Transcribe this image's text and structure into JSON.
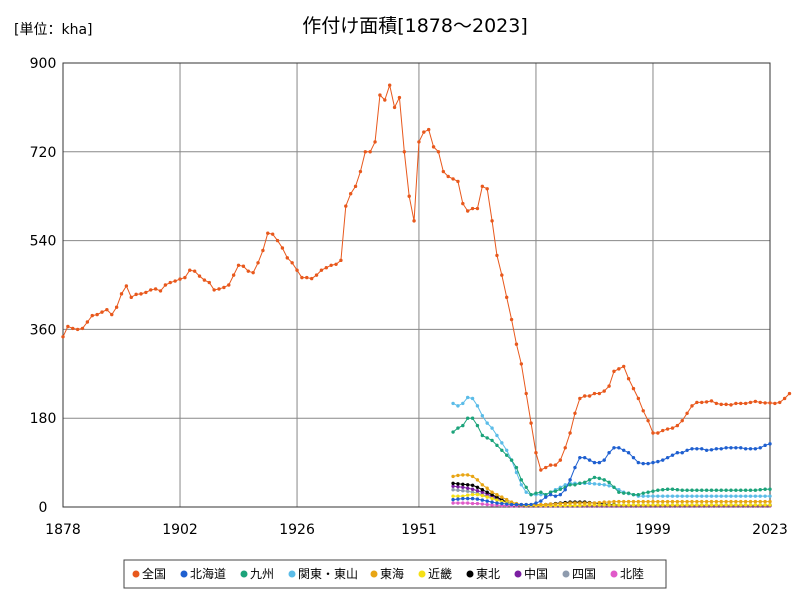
{
  "chart_data": {
    "type": "line",
    "title": "作付け面積[1878～2023]",
    "unit_label": "[単位：kha]",
    "xlabel": "",
    "ylabel": "",
    "xlim": [
      1878,
      2023
    ],
    "ylim": [
      0,
      900
    ],
    "x_ticks": [
      "1878",
      "1902",
      "1926",
      "1951",
      "1975",
      "1999",
      "2023"
    ],
    "y_ticks": [
      "0",
      "180",
      "360",
      "540",
      "720",
      "900"
    ],
    "grid": true,
    "legend_position": "bottom",
    "series": [
      {
        "name": "全国",
        "color": "#E8581C",
        "x0": 1878,
        "values": [
          345,
          366,
          362,
          360,
          362,
          375,
          388,
          390,
          395,
          400,
          390,
          405,
          432,
          448,
          425,
          431,
          432,
          435,
          440,
          442,
          438,
          450,
          455,
          458,
          462,
          465,
          480,
          478,
          468,
          460,
          455,
          440,
          442,
          445,
          450,
          470,
          490,
          488,
          478,
          475,
          495,
          520,
          555,
          553,
          540,
          525,
          505,
          495,
          480,
          465,
          465,
          463,
          470,
          480,
          485,
          490,
          492,
          500,
          610,
          635,
          650,
          680,
          720,
          720,
          740,
          835,
          825,
          855,
          810,
          830,
          720,
          630,
          580,
          740,
          760,
          765,
          730,
          720,
          680,
          670,
          665,
          660,
          615,
          600,
          605,
          605,
          650,
          645,
          580,
          510,
          470,
          425,
          380,
          330,
          290,
          230,
          170,
          110,
          75,
          80,
          85,
          85,
          95,
          120,
          150,
          190,
          220,
          225,
          225,
          230,
          230,
          235,
          245,
          275,
          280,
          285,
          260,
          240,
          220,
          195,
          175,
          150,
          150,
          155,
          158,
          160,
          165,
          175,
          190,
          205,
          212,
          212,
          213,
          215,
          210,
          208,
          208,
          207,
          210,
          210,
          210,
          212,
          214,
          212,
          211,
          211,
          210,
          212,
          220,
          230
        ]
      },
      {
        "name": "北海道",
        "color": "#1E5FD0",
        "x0": 1958,
        "values": [
          15,
          16,
          17,
          17,
          17,
          16,
          14,
          12,
          10,
          8,
          7,
          6,
          5,
          5,
          5,
          5,
          5,
          8,
          12,
          20,
          25,
          22,
          25,
          35,
          55,
          80,
          100,
          100,
          95,
          90,
          90,
          95,
          110,
          120,
          120,
          115,
          110,
          100,
          90,
          88,
          88,
          90,
          92,
          95,
          100,
          105,
          110,
          110,
          115,
          118,
          118,
          118,
          115,
          116,
          118,
          118,
          120,
          120,
          120,
          120,
          118,
          118,
          118,
          120,
          125,
          128
        ]
      },
      {
        "name": "九州",
        "color": "#1BA37A",
        "x0": 1958,
        "values": [
          152,
          160,
          165,
          180,
          180,
          165,
          145,
          140,
          135,
          125,
          115,
          105,
          95,
          80,
          55,
          40,
          25,
          28,
          30,
          25,
          30,
          32,
          36,
          40,
          45,
          45,
          48,
          50,
          55,
          60,
          58,
          55,
          50,
          40,
          30,
          28,
          28,
          25,
          25,
          28,
          30,
          32,
          34,
          35,
          36,
          36,
          35,
          34,
          34,
          34,
          34,
          34,
          34,
          34,
          34,
          34,
          34,
          34,
          34,
          34,
          34,
          34,
          34,
          35,
          36,
          36
        ]
      },
      {
        "name": "関東・東山",
        "color": "#5BBCE8",
        "x0": 1958,
        "values": [
          210,
          205,
          210,
          222,
          220,
          205,
          185,
          170,
          160,
          145,
          130,
          115,
          95,
          70,
          45,
          30,
          25,
          25,
          25,
          25,
          30,
          35,
          40,
          45,
          48,
          48,
          48,
          48,
          48,
          47,
          46,
          45,
          43,
          40,
          35,
          30,
          27,
          25,
          22,
          22,
          22,
          22,
          22,
          22,
          22,
          22,
          22,
          22,
          22,
          22,
          22,
          22,
          22,
          22,
          22,
          22,
          22,
          22,
          22,
          22,
          22,
          22,
          22,
          22,
          22,
          22
        ]
      },
      {
        "name": "東海",
        "color": "#E8A514",
        "x0": 1958,
        "values": [
          62,
          64,
          65,
          65,
          62,
          55,
          45,
          38,
          30,
          25,
          20,
          15,
          10,
          7,
          5,
          5,
          5,
          5,
          5,
          5,
          6,
          6,
          7,
          7,
          8,
          8,
          8,
          8,
          8,
          8,
          9,
          10,
          10,
          11,
          11,
          11,
          11,
          11,
          11,
          11,
          11,
          11,
          11,
          11,
          11,
          11,
          11,
          11,
          11,
          11,
          11,
          11,
          11,
          11,
          11,
          11,
          11,
          11,
          11,
          11,
          11,
          11,
          11,
          11,
          11,
          11
        ]
      },
      {
        "name": "近畿",
        "color": "#F5E016",
        "x0": 1958,
        "values": [
          22,
          22,
          22,
          24,
          25,
          25,
          23,
          20,
          17,
          14,
          11,
          9,
          7,
          5,
          4,
          3,
          3,
          3,
          3,
          3,
          3,
          3,
          3,
          3,
          3,
          3,
          3,
          4,
          4,
          4,
          4,
          4,
          4,
          4,
          4,
          4,
          4,
          4,
          4,
          4,
          4,
          4,
          4,
          4,
          4,
          4,
          4,
          4,
          4,
          4,
          4,
          4,
          4,
          4,
          4,
          4,
          4,
          4,
          4,
          4,
          4,
          4,
          4,
          4,
          4,
          4
        ]
      },
      {
        "name": "東北",
        "color": "#000000",
        "x0": 1958,
        "values": [
          48,
          47,
          46,
          45,
          44,
          40,
          35,
          30,
          25,
          20,
          15,
          10,
          7,
          5,
          4,
          3,
          3,
          3,
          4,
          5,
          6,
          7,
          8,
          9,
          10,
          10,
          10,
          10,
          9,
          8,
          7,
          6,
          5,
          5,
          4,
          4,
          4,
          4,
          4,
          4,
          4,
          4,
          4,
          4,
          4,
          4,
          4,
          4,
          4,
          4,
          4,
          4,
          4,
          4,
          4,
          4,
          4,
          4,
          4,
          4,
          4,
          4,
          4,
          4,
          4,
          4
        ]
      },
      {
        "name": "中国",
        "color": "#7B1FA2",
        "x0": 1958,
        "values": [
          42,
          41,
          40,
          38,
          36,
          33,
          30,
          26,
          22,
          18,
          14,
          10,
          7,
          5,
          4,
          3,
          3,
          3,
          3,
          3,
          3,
          3,
          3,
          3,
          3,
          3,
          3,
          3,
          3,
          3,
          3,
          3,
          3,
          3,
          3,
          3,
          3,
          3,
          3,
          3,
          3,
          3,
          3,
          3,
          3,
          3,
          3,
          3,
          3,
          3,
          3,
          3,
          3,
          3,
          3,
          3,
          3,
          3,
          3,
          3,
          3,
          3,
          3,
          3,
          3,
          3
        ]
      },
      {
        "name": "四国",
        "color": "#8E9BAE",
        "x0": 1958,
        "values": [
          35,
          34,
          33,
          32,
          30,
          28,
          25,
          22,
          19,
          16,
          13,
          10,
          7,
          5,
          4,
          3,
          3,
          3,
          3,
          3,
          3,
          3,
          3,
          3,
          3,
          3,
          3,
          3,
          3,
          3,
          3,
          3,
          3,
          3,
          3,
          3,
          3,
          3,
          3,
          3,
          3,
          3,
          3,
          3,
          3,
          3,
          3,
          3,
          3,
          3,
          3,
          3,
          3,
          3,
          3,
          3,
          3,
          3,
          3,
          3,
          3,
          3,
          3,
          3,
          3,
          3
        ]
      },
      {
        "name": "北陸",
        "color": "#E05AC9",
        "x0": 1958,
        "values": [
          8,
          8,
          8,
          8,
          7,
          7,
          6,
          5,
          4,
          4,
          3,
          3,
          2,
          2,
          2,
          2,
          2,
          2,
          2,
          2,
          2,
          2,
          2,
          2,
          2,
          2,
          2,
          2,
          2,
          2,
          2,
          2,
          2,
          2,
          2,
          2,
          2,
          2,
          2,
          2,
          2,
          2,
          2,
          2,
          2,
          2,
          2,
          2,
          2,
          2,
          2,
          2,
          2,
          2,
          2,
          2,
          2,
          2,
          2,
          2,
          2,
          2,
          2,
          2,
          2,
          2
        ]
      }
    ]
  }
}
